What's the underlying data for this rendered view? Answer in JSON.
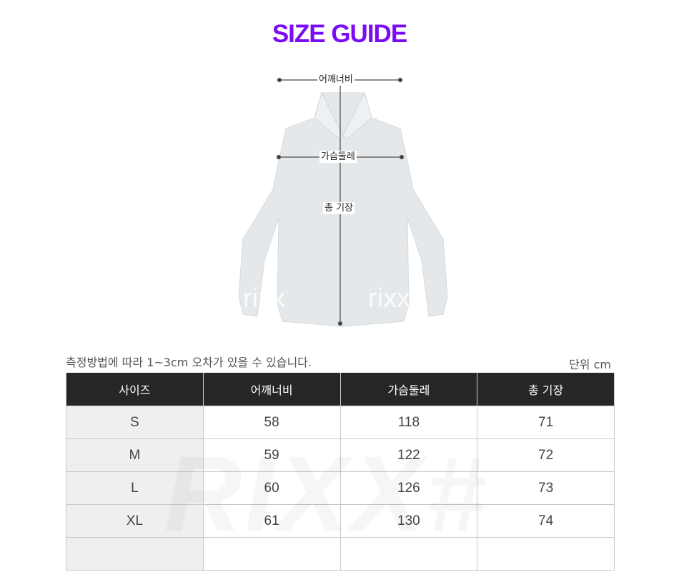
{
  "title": "SIZE GUIDE",
  "diagram": {
    "shoulder_label": "어깨너비",
    "chest_label": "가슴둘레",
    "length_label": "총 기장",
    "watermark": "rixx"
  },
  "note": "측정방법에 따라 1~3cm 오차가 있을 수 있습니다.",
  "unit": "단위 cm",
  "table": {
    "headers": [
      "사이즈",
      "어깨너비",
      "가슴둘레",
      "총 기장"
    ],
    "rows": [
      [
        "S",
        "58",
        "118",
        "71"
      ],
      [
        "M",
        "59",
        "122",
        "72"
      ],
      [
        "L",
        "60",
        "126",
        "73"
      ],
      [
        "XL",
        "61",
        "130",
        "74"
      ],
      [
        "",
        "",
        "",
        ""
      ]
    ],
    "watermark": "RIXX#"
  },
  "colors": {
    "title": "#7a0cf4",
    "header_bg": "#262626",
    "size_col_bg": "#efefef"
  }
}
